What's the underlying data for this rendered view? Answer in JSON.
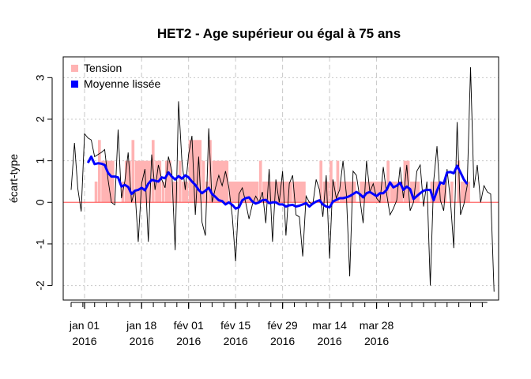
{
  "chart_data": {
    "type": "bar+line",
    "title": "HET2 - Age supérieur ou égal à 75 ans",
    "ylabel": "écart-type",
    "xlabel": "",
    "ylim": [
      -2.35,
      3.5
    ],
    "yticks": [
      -2,
      -1,
      0,
      1,
      2,
      3
    ],
    "start_date": "2015-12-28",
    "xticks": [
      {
        "date": "2016-01-01",
        "line1": "jan 01",
        "line2": "2016"
      },
      {
        "date": "2016-01-18",
        "line1": "jan 18",
        "line2": "2016"
      },
      {
        "date": "2016-02-01",
        "line1": "fév 01",
        "line2": "2016"
      },
      {
        "date": "2016-02-15",
        "line1": "fév 15",
        "line2": "2016"
      },
      {
        "date": "2016-02-29",
        "line1": "fév 29",
        "line2": "2016"
      },
      {
        "date": "2016-03-14",
        "line1": "mar 14",
        "line2": "2016"
      },
      {
        "date": "2016-03-28",
        "line1": "mar 28",
        "line2": "2016"
      }
    ],
    "grid": true,
    "legend_position": "top-left",
    "legend": [
      {
        "label": "Tension",
        "color": "#FFB3B3",
        "marker": "square"
      },
      {
        "label": "Moyenne lissée",
        "color": "#0000FF",
        "marker": "square"
      }
    ],
    "colors": {
      "tension": "#FFB3B3",
      "raw_line": "#000000",
      "smoothed": "#0000FF",
      "zero_line": "#FF6666",
      "grid": "#C8C8C8"
    },
    "raw_series": [
      0.3,
      1.43,
      0.33,
      -0.22,
      1.65,
      1.55,
      1.5,
      1.1,
      1.15,
      1.2,
      1.27,
      0.55,
      0.0,
      -0.06,
      1.75,
      0.1,
      0.5,
      1.2,
      0.0,
      0.3,
      -0.95,
      0.45,
      0.8,
      -0.95,
      1.15,
      0.3,
      0.9,
      0.55,
      0.35,
      1.1,
      0.75,
      -1.15,
      2.43,
      1.0,
      0.3,
      1.15,
      1.6,
      -0.3,
      1.1,
      -0.48,
      -0.8,
      1.78,
      0.0,
      0.35,
      0.65,
      0.4,
      0.75,
      0.35,
      -0.32,
      -1.42,
      0.2,
      0.35,
      0.0,
      -0.4,
      -0.05,
      0.15,
      0.0,
      0.25,
      -0.5,
      0.8,
      -0.95,
      0.55,
      0.0,
      0.75,
      -0.8,
      0.45,
      0.65,
      -0.3,
      -0.35,
      -1.3,
      0.15,
      0.0,
      -0.05,
      0.55,
      0.3,
      -0.35,
      0.65,
      -1.35,
      0.55,
      0.1,
      0.3,
      1.0,
      0.2,
      -1.78,
      0.75,
      0.65,
      0.1,
      -0.5,
      1.0,
      0.25,
      0.45,
      0.1,
      0.0,
      0.85,
      0.2,
      -0.3,
      -0.15,
      0.05,
      0.85,
      0.1,
      0.9,
      -0.2,
      0.0,
      0.75,
      0.9,
      -0.1,
      0.5,
      -2.0,
      0.5,
      1.35,
      0.05,
      -0.2,
      0.8,
      0.05,
      -1.1,
      1.93,
      -0.3,
      -0.05,
      0.4,
      3.25,
      0.35,
      0.9,
      0.0,
      0.4,
      0.25,
      0.2,
      -2.15
    ],
    "smoothed_series": [
      null,
      null,
      null,
      null,
      null,
      0.95,
      1.1,
      0.92,
      0.94,
      0.93,
      0.9,
      0.71,
      0.62,
      0.62,
      0.6,
      0.38,
      0.42,
      0.37,
      0.2,
      0.28,
      0.3,
      0.35,
      0.29,
      0.45,
      0.54,
      0.52,
      0.5,
      0.6,
      0.58,
      0.72,
      0.62,
      0.55,
      0.63,
      0.57,
      0.65,
      0.6,
      0.5,
      0.42,
      0.3,
      0.22,
      0.28,
      0.35,
      0.2,
      0.13,
      0.05,
      0.03,
      -0.05,
      0.0,
      -0.06,
      -0.15,
      -0.12,
      0.05,
      0.1,
      0.12,
      0.02,
      -0.03,
      0.0,
      0.05,
      0.06,
      -0.02,
      0.0,
      0.0,
      -0.05,
      -0.05,
      -0.1,
      -0.07,
      -0.06,
      -0.1,
      -0.08,
      -0.05,
      -0.02,
      -0.1,
      -0.03,
      0.02,
      0.05,
      -0.05,
      -0.1,
      -0.12,
      0.02,
      0.06,
      0.1,
      0.1,
      0.12,
      0.15,
      0.2,
      0.25,
      0.2,
      0.12,
      0.22,
      0.25,
      0.2,
      0.15,
      0.22,
      0.22,
      0.3,
      0.48,
      0.36,
      0.4,
      0.47,
      0.3,
      0.38,
      0.32,
      0.08,
      0.15,
      0.22,
      0.28,
      0.3,
      0.3,
      0.05,
      0.28,
      0.48,
      0.45,
      0.72,
      0.73,
      0.7,
      0.88,
      0.72,
      0.55,
      0.44,
      null,
      null,
      null,
      null,
      null,
      null,
      null,
      null
    ],
    "tension_bars": [
      {
        "from": 7,
        "to": 8,
        "value": 0.5
      },
      {
        "from": 8,
        "to": 9,
        "value": 1.5
      },
      {
        "from": 9,
        "to": 13,
        "value": 1.0
      },
      {
        "from": 15,
        "to": 16,
        "value": 0.5
      },
      {
        "from": 16,
        "to": 18,
        "value": 1.0
      },
      {
        "from": 18,
        "to": 19,
        "value": 1.5
      },
      {
        "from": 19,
        "to": 24,
        "value": 1.0
      },
      {
        "from": 24,
        "to": 25,
        "value": 1.5
      },
      {
        "from": 25,
        "to": 27,
        "value": 1.0
      },
      {
        "from": 27,
        "to": 28,
        "value": 0.5
      },
      {
        "from": 28,
        "to": 30,
        "value": 1.0
      },
      {
        "from": 30,
        "to": 32,
        "value": 0.5
      },
      {
        "from": 32,
        "to": 33,
        "value": 1.0
      },
      {
        "from": 33,
        "to": 35,
        "value": 0.5
      },
      {
        "from": 35,
        "to": 39,
        "value": 1.5
      },
      {
        "from": 39,
        "to": 40,
        "value": 1.0
      },
      {
        "from": 40,
        "to": 41,
        "value": 0.5
      },
      {
        "from": 41,
        "to": 42,
        "value": 1.5
      },
      {
        "from": 42,
        "to": 47,
        "value": 1.0
      },
      {
        "from": 47,
        "to": 56,
        "value": 0.5
      },
      {
        "from": 56,
        "to": 57,
        "value": 1.0
      },
      {
        "from": 57,
        "to": 66,
        "value": 0.5
      },
      {
        "from": 66,
        "to": 70,
        "value": 0.5
      },
      {
        "from": 74,
        "to": 75,
        "value": 1.0
      },
      {
        "from": 75,
        "to": 77,
        "value": 0.5
      },
      {
        "from": 77,
        "to": 78,
        "value": 1.0
      },
      {
        "from": 78,
        "to": 79,
        "value": 0.5
      },
      {
        "from": 79,
        "to": 80,
        "value": 1.0
      },
      {
        "from": 80,
        "to": 85,
        "value": 0.5
      },
      {
        "from": 86,
        "to": 94,
        "value": 0.5
      },
      {
        "from": 94,
        "to": 95,
        "value": 1.0
      },
      {
        "from": 95,
        "to": 99,
        "value": 0.5
      },
      {
        "from": 99,
        "to": 101,
        "value": 1.0
      },
      {
        "from": 101,
        "to": 104,
        "value": 0.5
      },
      {
        "from": 107,
        "to": 112,
        "value": 0.5
      },
      {
        "from": 113,
        "to": 114,
        "value": 0.5
      },
      {
        "from": 115,
        "to": 116,
        "value": 1.0
      },
      {
        "from": 116,
        "to": 119,
        "value": 0.5
      }
    ]
  }
}
